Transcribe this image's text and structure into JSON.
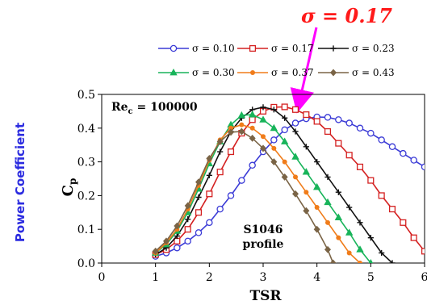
{
  "chart_data": {
    "type": "line",
    "highlight_annotation": "σ = 0.17",
    "ylabel_outer": "Power Coefficient",
    "ylabel": "C",
    "ylabel_sub": "p",
    "xlabel": "TSR",
    "inset_text_main": "Re",
    "inset_text_sub": "c",
    "inset_text_value": " = 100000",
    "profile_line1": "S1046",
    "profile_line2": "profile",
    "xlim": [
      0,
      6
    ],
    "ylim": [
      0,
      0.5
    ],
    "x_ticks": [
      "0",
      "1",
      "2",
      "3",
      "4",
      "5",
      "6"
    ],
    "y_ticks": [
      "0.0",
      "0.1",
      "0.2",
      "0.3",
      "0.4",
      "0.5"
    ],
    "legend_position": "top",
    "series": [
      {
        "name": "σ = 0.10",
        "color": "#3b3bd6",
        "marker": "circle",
        "x": [
          1.0,
          1.2,
          1.4,
          1.6,
          1.8,
          2.0,
          2.2,
          2.4,
          2.6,
          2.8,
          3.0,
          3.2,
          3.4,
          3.6,
          3.8,
          4.0,
          4.2,
          4.4,
          4.6,
          4.8,
          5.0,
          5.2,
          5.4,
          5.6,
          5.8,
          6.0
        ],
        "y": [
          0.02,
          0.03,
          0.045,
          0.065,
          0.09,
          0.12,
          0.16,
          0.2,
          0.245,
          0.29,
          0.33,
          0.365,
          0.395,
          0.415,
          0.428,
          0.433,
          0.432,
          0.425,
          0.415,
          0.4,
          0.385,
          0.365,
          0.345,
          0.325,
          0.305,
          0.285
        ]
      },
      {
        "name": "σ = 0.17",
        "color": "#d42020",
        "marker": "square",
        "x": [
          1.0,
          1.2,
          1.4,
          1.6,
          1.8,
          2.0,
          2.2,
          2.4,
          2.6,
          2.8,
          3.0,
          3.2,
          3.4,
          3.6,
          3.8,
          4.0,
          4.2,
          4.4,
          4.6,
          4.8,
          5.0,
          5.2,
          5.4,
          5.6,
          5.8,
          6.0
        ],
        "y": [
          0.025,
          0.04,
          0.065,
          0.1,
          0.15,
          0.205,
          0.27,
          0.33,
          0.385,
          0.425,
          0.45,
          0.462,
          0.463,
          0.455,
          0.44,
          0.42,
          0.39,
          0.355,
          0.32,
          0.285,
          0.245,
          0.2,
          0.16,
          0.12,
          0.075,
          0.035
        ]
      },
      {
        "name": "σ = 0.23",
        "color": "#111111",
        "marker": "plus",
        "x": [
          1.0,
          1.2,
          1.4,
          1.6,
          1.8,
          2.0,
          2.2,
          2.4,
          2.6,
          2.8,
          3.0,
          3.2,
          3.4,
          3.6,
          3.8,
          4.0,
          4.2,
          4.4,
          4.6,
          4.8,
          5.0,
          5.2,
          5.4
        ],
        "y": [
          0.025,
          0.045,
          0.08,
          0.13,
          0.195,
          0.26,
          0.33,
          0.39,
          0.43,
          0.455,
          0.462,
          0.455,
          0.43,
          0.39,
          0.345,
          0.3,
          0.255,
          0.21,
          0.165,
          0.12,
          0.075,
          0.03,
          0.0
        ]
      },
      {
        "name": "σ = 0.30",
        "color": "#18b45a",
        "marker": "triangle",
        "x": [
          1.0,
          1.2,
          1.4,
          1.6,
          1.8,
          2.0,
          2.2,
          2.4,
          2.6,
          2.8,
          3.0,
          3.2,
          3.4,
          3.6,
          3.8,
          4.0,
          4.2,
          4.4,
          4.6,
          4.8,
          5.0
        ],
        "y": [
          0.03,
          0.055,
          0.095,
          0.15,
          0.22,
          0.295,
          0.36,
          0.41,
          0.438,
          0.44,
          0.425,
          0.4,
          0.36,
          0.315,
          0.27,
          0.225,
          0.18,
          0.135,
          0.09,
          0.04,
          0.0
        ]
      },
      {
        "name": "σ = 0.37",
        "color": "#f07c1a",
        "marker": "dot",
        "x": [
          1.0,
          1.2,
          1.4,
          1.6,
          1.8,
          2.0,
          2.2,
          2.4,
          2.6,
          2.8,
          3.0,
          3.2,
          3.4,
          3.6,
          3.8,
          4.0,
          4.2,
          4.4,
          4.6,
          4.8
        ],
        "y": [
          0.03,
          0.06,
          0.1,
          0.16,
          0.23,
          0.305,
          0.365,
          0.4,
          0.41,
          0.4,
          0.375,
          0.34,
          0.3,
          0.255,
          0.21,
          0.165,
          0.12,
          0.075,
          0.03,
          0.0
        ]
      },
      {
        "name": "σ = 0.43",
        "color": "#7a6446",
        "marker": "diamond",
        "x": [
          1.0,
          1.2,
          1.4,
          1.6,
          1.8,
          2.0,
          2.2,
          2.4,
          2.6,
          2.8,
          3.0,
          3.2,
          3.4,
          3.6,
          3.8,
          4.0,
          4.2,
          4.3
        ],
        "y": [
          0.035,
          0.065,
          0.11,
          0.17,
          0.24,
          0.31,
          0.36,
          0.388,
          0.39,
          0.37,
          0.34,
          0.3,
          0.255,
          0.205,
          0.155,
          0.1,
          0.04,
          0.0
        ]
      }
    ]
  }
}
